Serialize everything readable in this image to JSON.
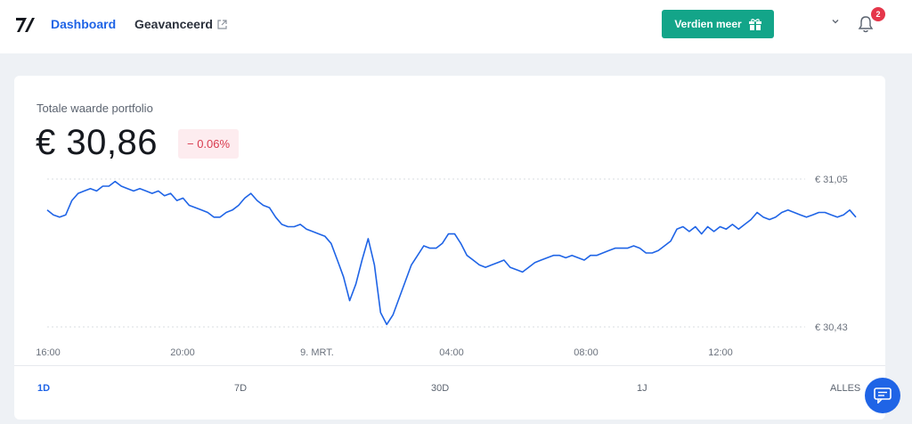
{
  "header": {
    "nav_dashboard": "Dashboard",
    "nav_advanced": "Geavanceerd",
    "earn_button": "Verdien meer",
    "notification_count": "2"
  },
  "portfolio": {
    "label": "Totale waarde portfolio",
    "value": "€ 30,86",
    "change": "− 0.06%"
  },
  "chart_data": {
    "type": "line",
    "title": "",
    "x_tick_labels": [
      "16:00",
      "20:00",
      "9. MRT.",
      "04:00",
      "08:00",
      "12:00"
    ],
    "y_tick_labels": [
      "€ 31,05",
      "€ 30,43"
    ],
    "ylim": [
      30.43,
      31.05
    ],
    "grid": "dotted horizontal at y ticks",
    "color": "#1f64e6",
    "series": [
      {
        "values": [
          30.92,
          30.9,
          30.89,
          30.9,
          30.96,
          30.99,
          31.0,
          31.01,
          31.0,
          31.02,
          31.02,
          31.04,
          31.02,
          31.01,
          31.0,
          31.01,
          31.0,
          30.99,
          31.0,
          30.98,
          30.99,
          30.96,
          30.97,
          30.94,
          30.93,
          30.92,
          30.91,
          30.89,
          30.89,
          30.91,
          30.92,
          30.94,
          30.97,
          30.99,
          30.96,
          30.94,
          30.93,
          30.89,
          30.86,
          30.85,
          30.85,
          30.86,
          30.84,
          30.83,
          30.82,
          30.81,
          30.78,
          30.71,
          30.64,
          30.54,
          30.61,
          30.71,
          30.8,
          30.69,
          30.49,
          30.44,
          30.48,
          30.55,
          30.62,
          30.69,
          30.73,
          30.77,
          30.76,
          30.76,
          30.78,
          30.82,
          30.82,
          30.78,
          30.73,
          30.71,
          30.69,
          30.68,
          30.69,
          30.7,
          30.71,
          30.68,
          30.67,
          30.66,
          30.68,
          30.7,
          30.71,
          30.72,
          30.73,
          30.73,
          30.72,
          30.73,
          30.72,
          30.71,
          30.73,
          30.73,
          30.74,
          30.75,
          30.76,
          30.76,
          30.76,
          30.77,
          30.76,
          30.74,
          30.74,
          30.75,
          30.77,
          30.79,
          30.84,
          30.85,
          30.83,
          30.85,
          30.82,
          30.85,
          30.83,
          30.85,
          30.84,
          30.86,
          30.84,
          30.86,
          30.88,
          30.91,
          30.89,
          30.88,
          30.89,
          30.91,
          30.92,
          30.91,
          30.9,
          30.89,
          30.9,
          30.91,
          30.91,
          30.9,
          30.89,
          30.9,
          30.92,
          30.89
        ]
      }
    ],
    "range_options": [
      "1D",
      "7D",
      "30D",
      "1J",
      "ALLES"
    ],
    "selected_range": "1D"
  },
  "colors": {
    "accent": "#1f64e6",
    "earn_button": "#13a589",
    "negative": "#d93b4f",
    "badge": "#e5364a"
  },
  "icons": {
    "logo": "bitvavo-logo",
    "external_link": "external-link-icon",
    "gift": "gift-icon",
    "chevron": "chevron-down-icon",
    "bell": "bell-icon",
    "chat": "chat-icon"
  }
}
